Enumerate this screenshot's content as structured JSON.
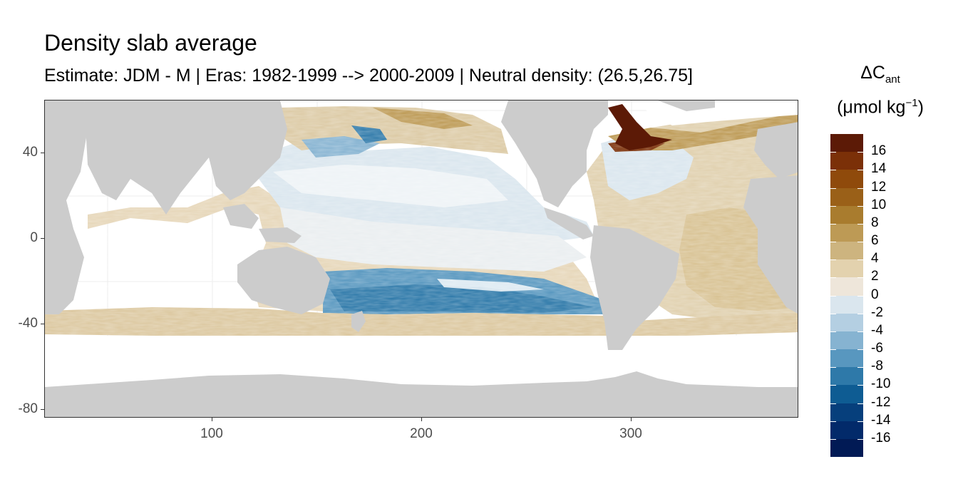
{
  "title": "Density slab average",
  "subtitle": "Estimate: JDM - M | Eras: 1982-1999 --> 2000-2009 | Neutral density: (26.5,26.75]",
  "legend": {
    "title_line1_main": "ΔC",
    "title_line1_sub": "ant",
    "title_line2_pre": "(μmol kg",
    "title_line2_sup": "−1",
    "title_line2_post": ")",
    "labels": [
      "16",
      "14",
      "12",
      "10",
      "8",
      "6",
      "4",
      "2",
      "0",
      "-2",
      "-4",
      "-6",
      "-8",
      "-10",
      "-12",
      "-14",
      "-16"
    ],
    "colors": [
      "#5c1a06",
      "#7b3008",
      "#8f4a0b",
      "#9a6018",
      "#a97c2e",
      "#bd9a55",
      "#cdb47f",
      "#e3d2ae",
      "#eee6da",
      "#dae6ee",
      "#b4cfe2",
      "#86b3d1",
      "#5897bf",
      "#2e79a9",
      "#0e5c93",
      "#063f7c",
      "#022a6a",
      "#011a55"
    ]
  },
  "axes": {
    "x_ticks": [
      "100",
      "200",
      "300"
    ],
    "y_ticks": [
      "40",
      "0",
      "-40",
      "-80"
    ]
  },
  "map": {
    "x_range": [
      20,
      380
    ],
    "y_range": [
      -85,
      65
    ],
    "land_color": "#cccccc",
    "ocean_missing_color": "#ffffff"
  }
}
